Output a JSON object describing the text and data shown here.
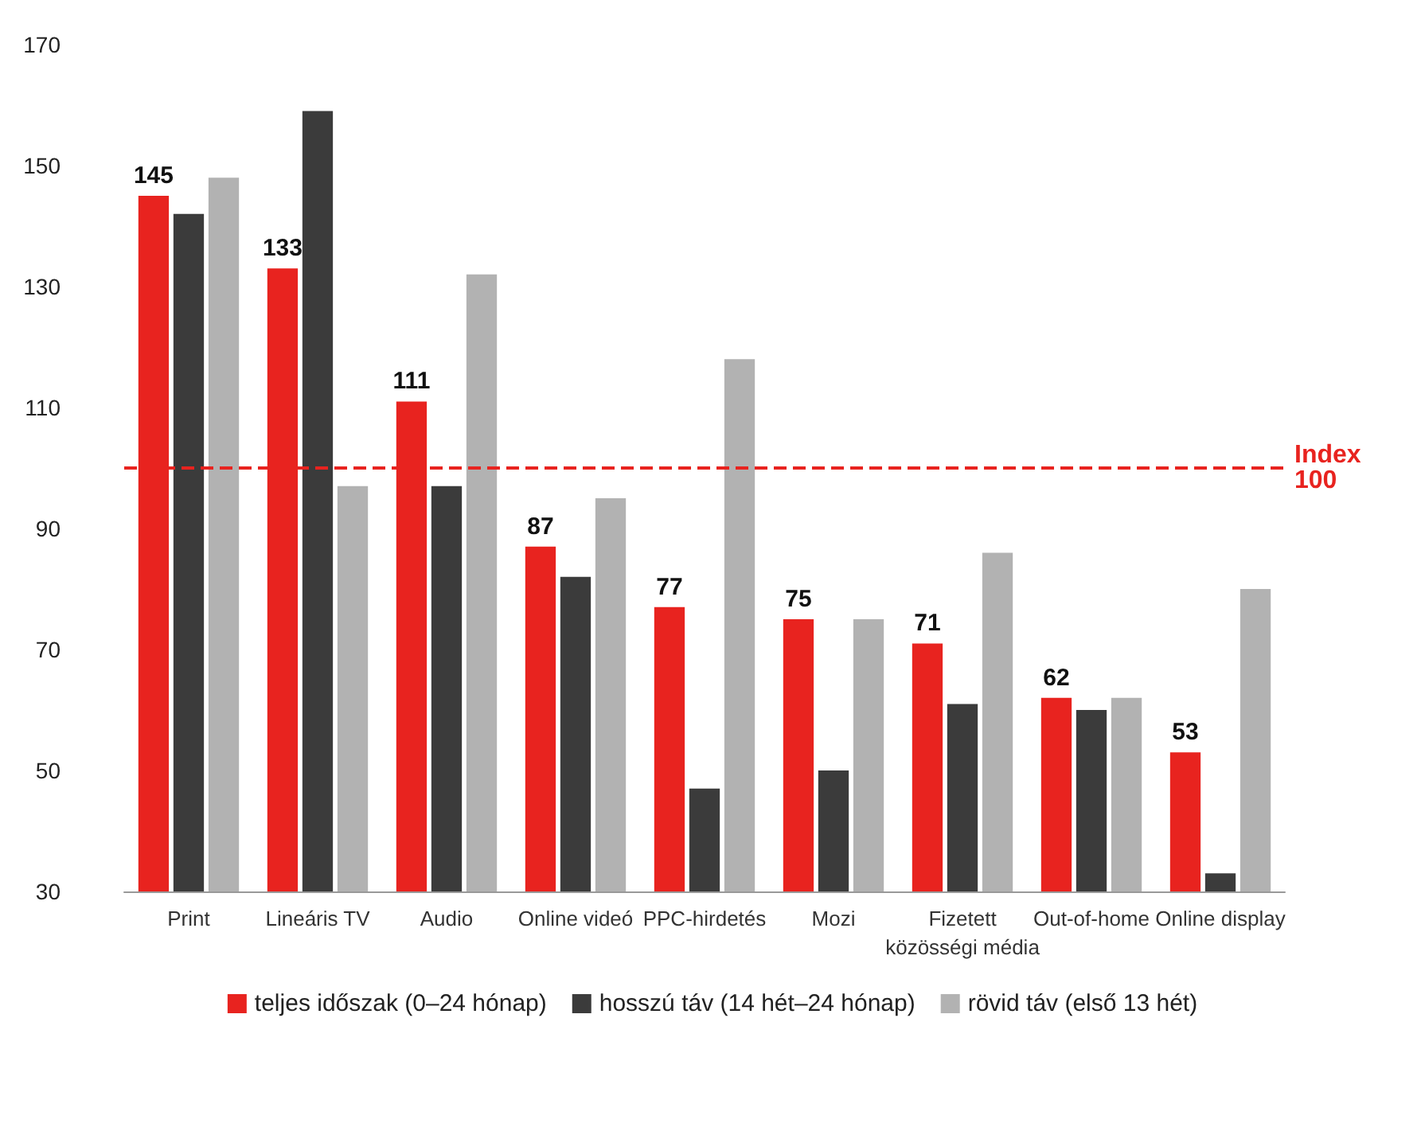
{
  "chart_data": {
    "type": "bar",
    "categories": [
      "Print",
      "Lineáris TV",
      "Audio",
      "Online videó",
      "PPC-hirdetés",
      "Mozi",
      "Fizetett\nközösségi média",
      "Out-of-home",
      "Online display"
    ],
    "series": [
      {
        "name": "teljes időszak (0–24 hónap)",
        "color": "#e8231f",
        "values": [
          145,
          133,
          111,
          87,
          77,
          75,
          71,
          62,
          53
        ],
        "value_labels": [
          "145",
          "133",
          "111",
          "87",
          "77",
          "75",
          "71",
          "62",
          "53"
        ]
      },
      {
        "name": "hosszú táv (14 hét–24 hónap)",
        "color": "#3b3b3b",
        "values": [
          142,
          159,
          97,
          82,
          47,
          50,
          61,
          60,
          33
        ]
      },
      {
        "name": "rövid táv (első 13 hét)",
        "color": "#b2b2b2",
        "values": [
          148,
          97,
          132,
          95,
          118,
          75,
          86,
          62,
          80
        ]
      }
    ],
    "ylim": [
      30,
      170
    ],
    "yticks": [
      30,
      50,
      70,
      90,
      110,
      130,
      150,
      170
    ],
    "ref_lines": [
      {
        "axis": "y",
        "value": 100,
        "label": "Index\n100",
        "color": "#e8231f",
        "line_style": "dashed"
      }
    ],
    "grid": false,
    "legend": "bottom"
  }
}
